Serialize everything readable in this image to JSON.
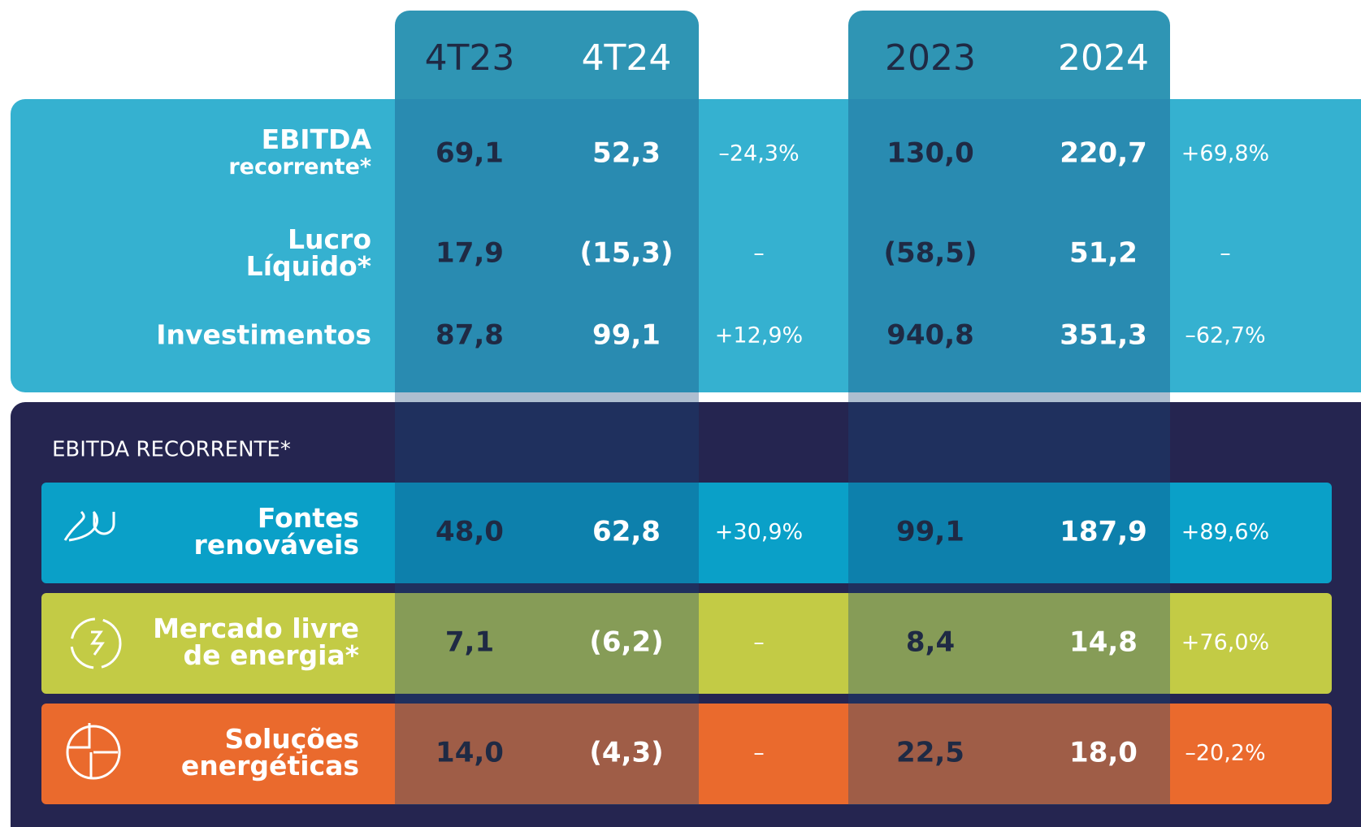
{
  "header": {
    "periods": [
      "4T23",
      "4T24",
      "2023",
      "2024"
    ]
  },
  "table": {
    "rows": [
      {
        "label": [
          "EBITDA",
          "recorrente*"
        ],
        "values": [
          "69,1",
          "52,3",
          "–24,3%",
          "130,0",
          "220,7",
          "+69,8%"
        ]
      },
      {
        "label": [
          "Lucro",
          "Líquido*"
        ],
        "values": [
          "17,9",
          "(15,3)",
          "–",
          "(58,5)",
          "51,2",
          "–"
        ]
      },
      {
        "label": [
          "Investimentos"
        ],
        "values": [
          "87,8",
          "99,1",
          "+12,9%",
          "940,8",
          "351,3",
          "–62,7%"
        ]
      }
    ]
  },
  "segments": {
    "title": "EBITDA RECORRENTE*",
    "rows": [
      {
        "label": [
          "Fontes",
          "renováveis"
        ],
        "values": [
          "48,0",
          "62,8",
          "+30,9%",
          "99,1",
          "187,9",
          "+89,6%"
        ]
      },
      {
        "label": [
          "Mercado livre",
          "de energia*"
        ],
        "values": [
          "7,1",
          "(6,2)",
          "–",
          "8,4",
          "14,8",
          "+76,0%"
        ]
      },
      {
        "label": [
          "Soluções",
          "energéticas"
        ],
        "values": [
          "14,0",
          "(4,3)",
          "–",
          "22,5",
          "18,0",
          "–20,2%"
        ]
      }
    ]
  }
}
